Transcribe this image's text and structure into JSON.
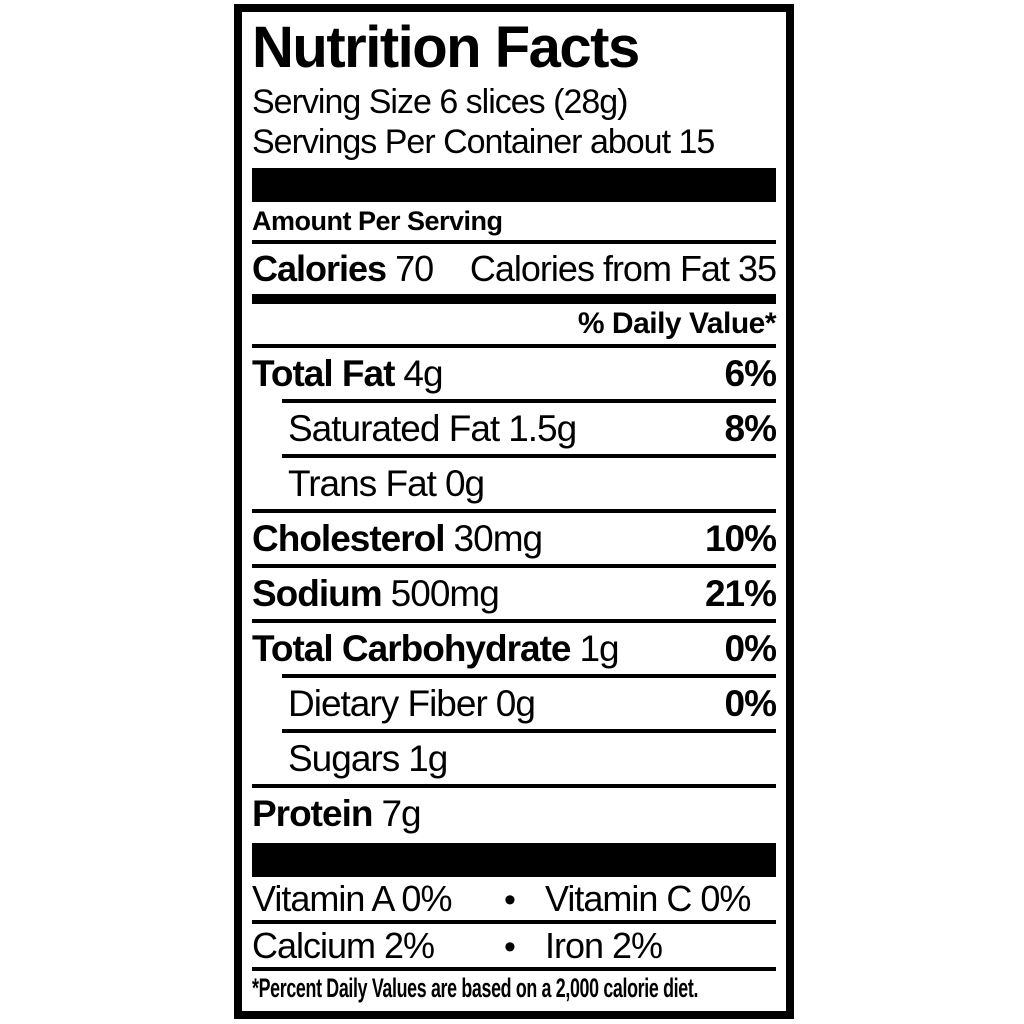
{
  "colors": {
    "ink": "#000000",
    "paper": "#ffffff"
  },
  "label": {
    "title": "Nutrition Facts",
    "serving_size": "Serving Size 6 slices (28g)",
    "servings_per_container": "Servings Per Container about 15",
    "amount_per_serving": "Amount Per Serving",
    "calories_label": "Calories",
    "calories_value": "70",
    "calories_from_fat": "Calories from Fat 35",
    "daily_value_header": "% Daily Value*",
    "nutrients": [
      {
        "name": "Total Fat",
        "amount": "4g",
        "dv": "6%"
      },
      {
        "name": "Saturated Fat",
        "amount": "1.5g",
        "dv": "8%"
      },
      {
        "name": "Trans Fat",
        "amount": "0g",
        "dv": ""
      },
      {
        "name": "Cholesterol",
        "amount": "30mg",
        "dv": "10%"
      },
      {
        "name": "Sodium",
        "amount": "500mg",
        "dv": "21%"
      },
      {
        "name": "Total Carbohydrate",
        "amount": "1g",
        "dv": "0%"
      },
      {
        "name": "Dietary Fiber",
        "amount": "0g",
        "dv": "0%"
      },
      {
        "name": "Sugars",
        "amount": "1g",
        "dv": ""
      },
      {
        "name": "Protein",
        "amount": "7g",
        "dv": ""
      }
    ],
    "bullet": "•",
    "micronutrients": [
      {
        "left": "Vitamin A 0%",
        "right": "Vitamin C 0%"
      },
      {
        "left": "Calcium 2%",
        "right": "Iron 2%"
      }
    ],
    "footnote": "*Percent Daily Values are based on a 2,000 calorie diet."
  }
}
